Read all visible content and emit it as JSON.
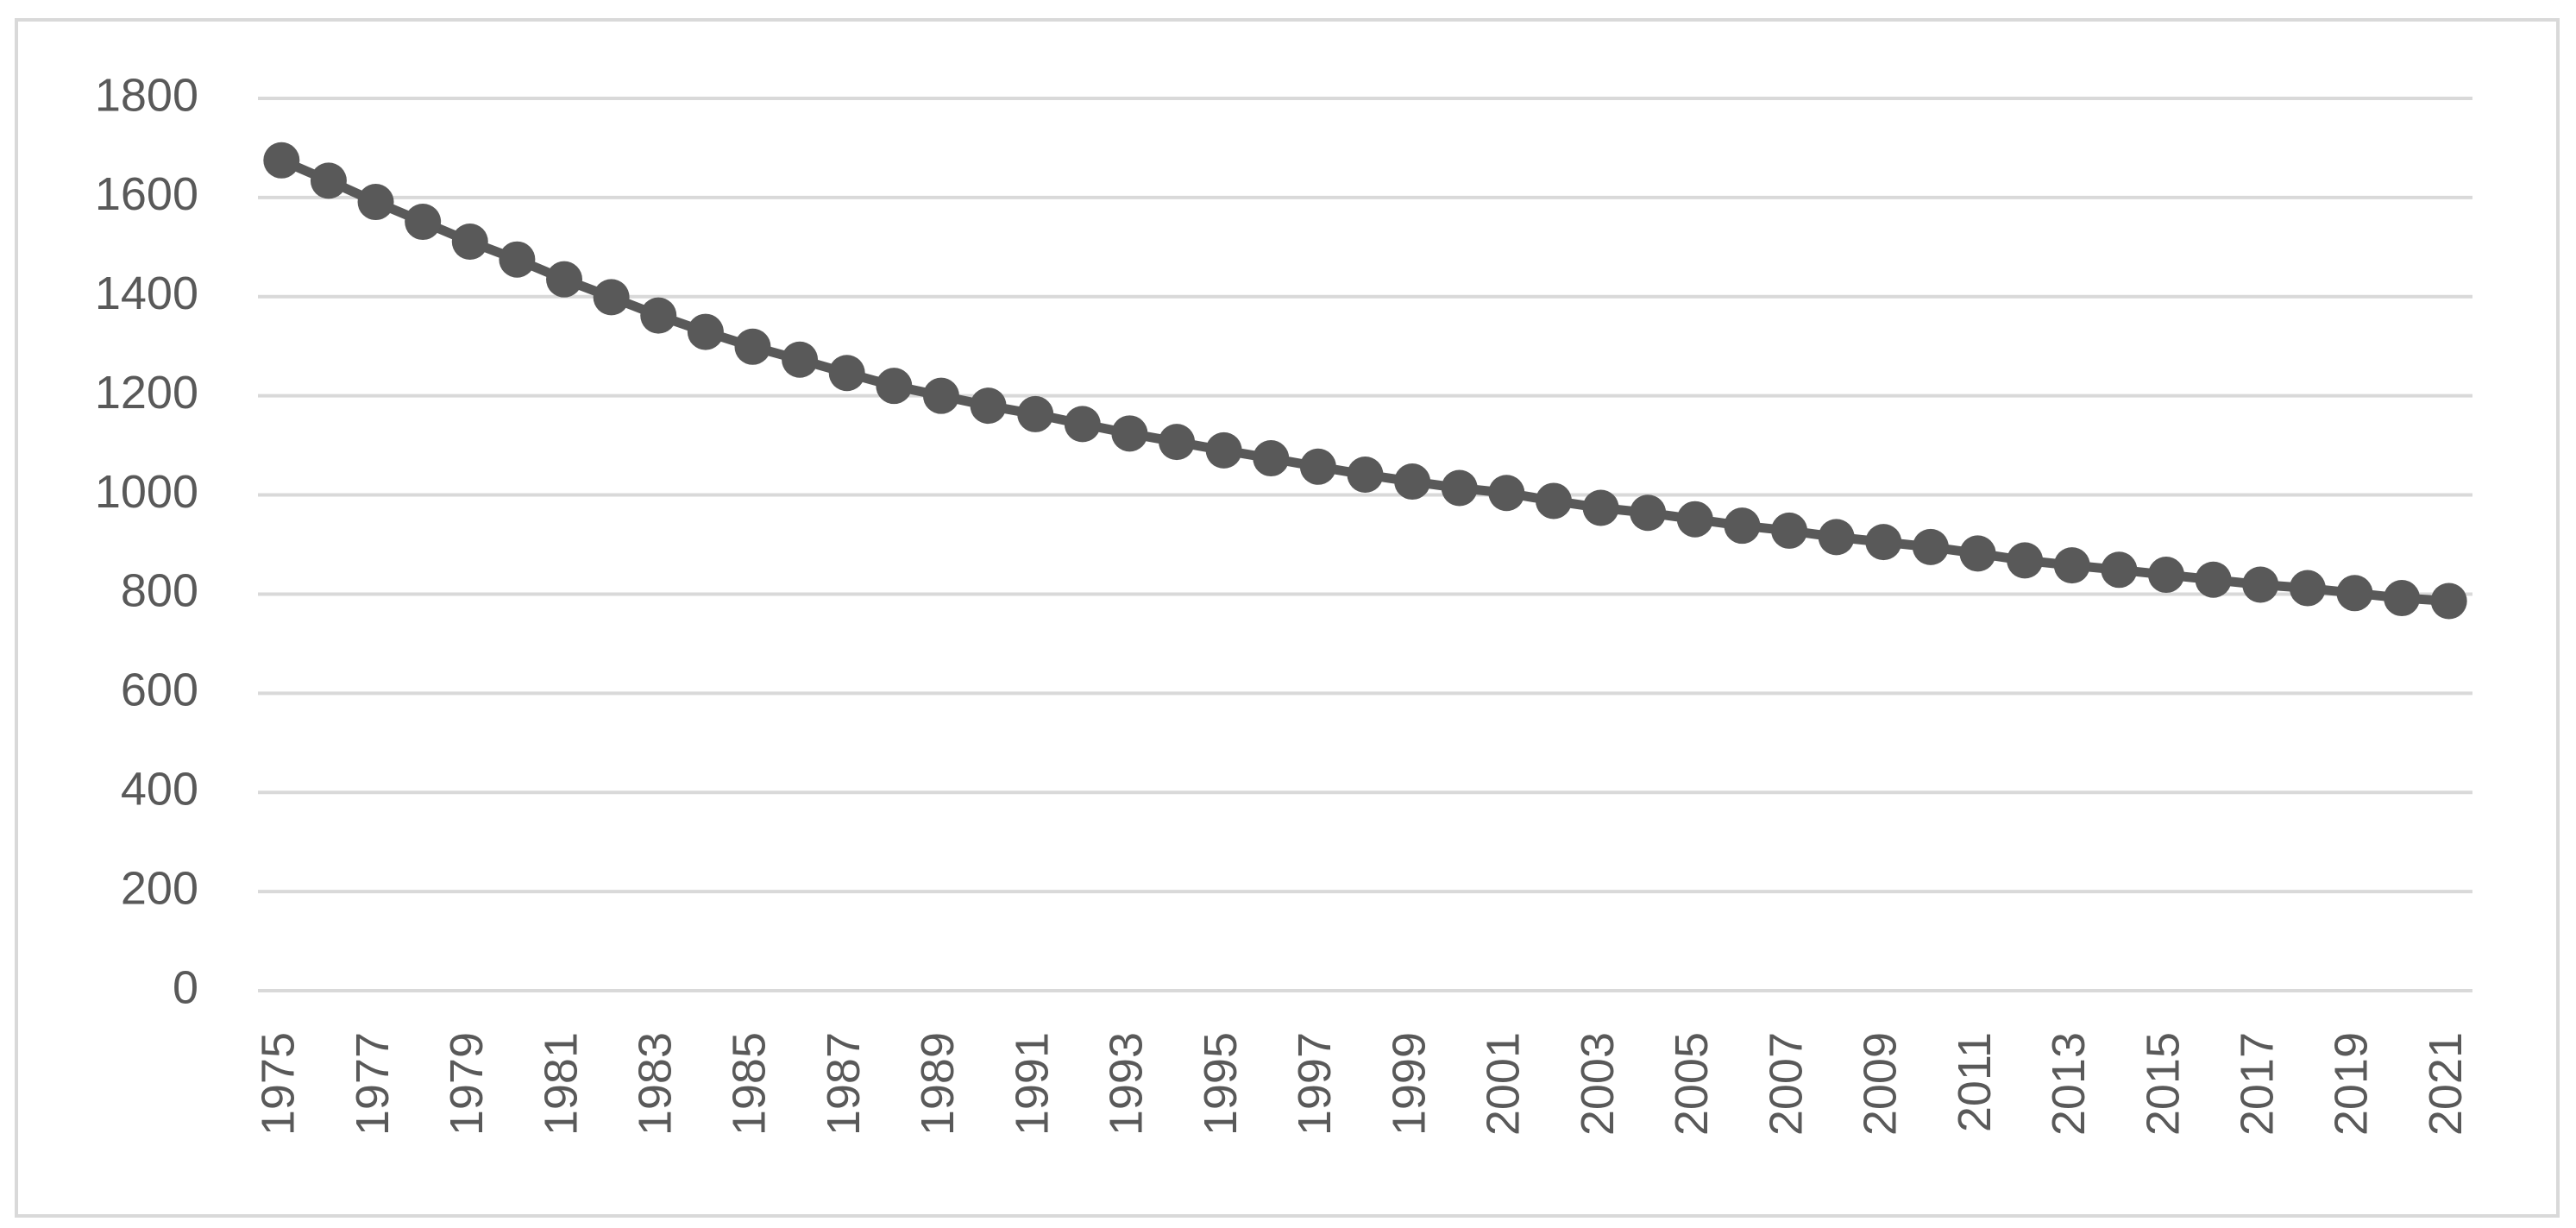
{
  "chart_data": {
    "type": "line",
    "categories": [
      "1975",
      null,
      "1977",
      null,
      "1979",
      null,
      "1981",
      null,
      "1983",
      null,
      "1985",
      null,
      "1987",
      null,
      "1989",
      null,
      "1991",
      null,
      "1993",
      null,
      "1995",
      null,
      "1997",
      null,
      "1999",
      null,
      "2001",
      null,
      "2003",
      null,
      "2005",
      null,
      "2007",
      null,
      "2009",
      null,
      "2011",
      null,
      "2013",
      null,
      "2015",
      null,
      "2017",
      null,
      "2019",
      null,
      "2021"
    ],
    "series": [
      {
        "color": "#595959",
        "values": [
          1675,
          1634,
          1591,
          1551,
          1511,
          1475,
          1435,
          1399,
          1362,
          1329,
          1299,
          1273,
          1246,
          1220,
          1200,
          1180,
          1163,
          1143,
          1124,
          1107,
          1090,
          1074,
          1057,
          1041,
          1027,
          1014,
          1004,
          988,
          974,
          964,
          951,
          938,
          928,
          915,
          905,
          895,
          882,
          868,
          858,
          849,
          839,
          829,
          819,
          812,
          802,
          792,
          786
        ]
      }
    ],
    "ylim": [
      0,
      1800
    ],
    "yticks": [
      0,
      200,
      400,
      600,
      800,
      1000,
      1200,
      1400,
      1600,
      1800
    ],
    "grid": true
  }
}
